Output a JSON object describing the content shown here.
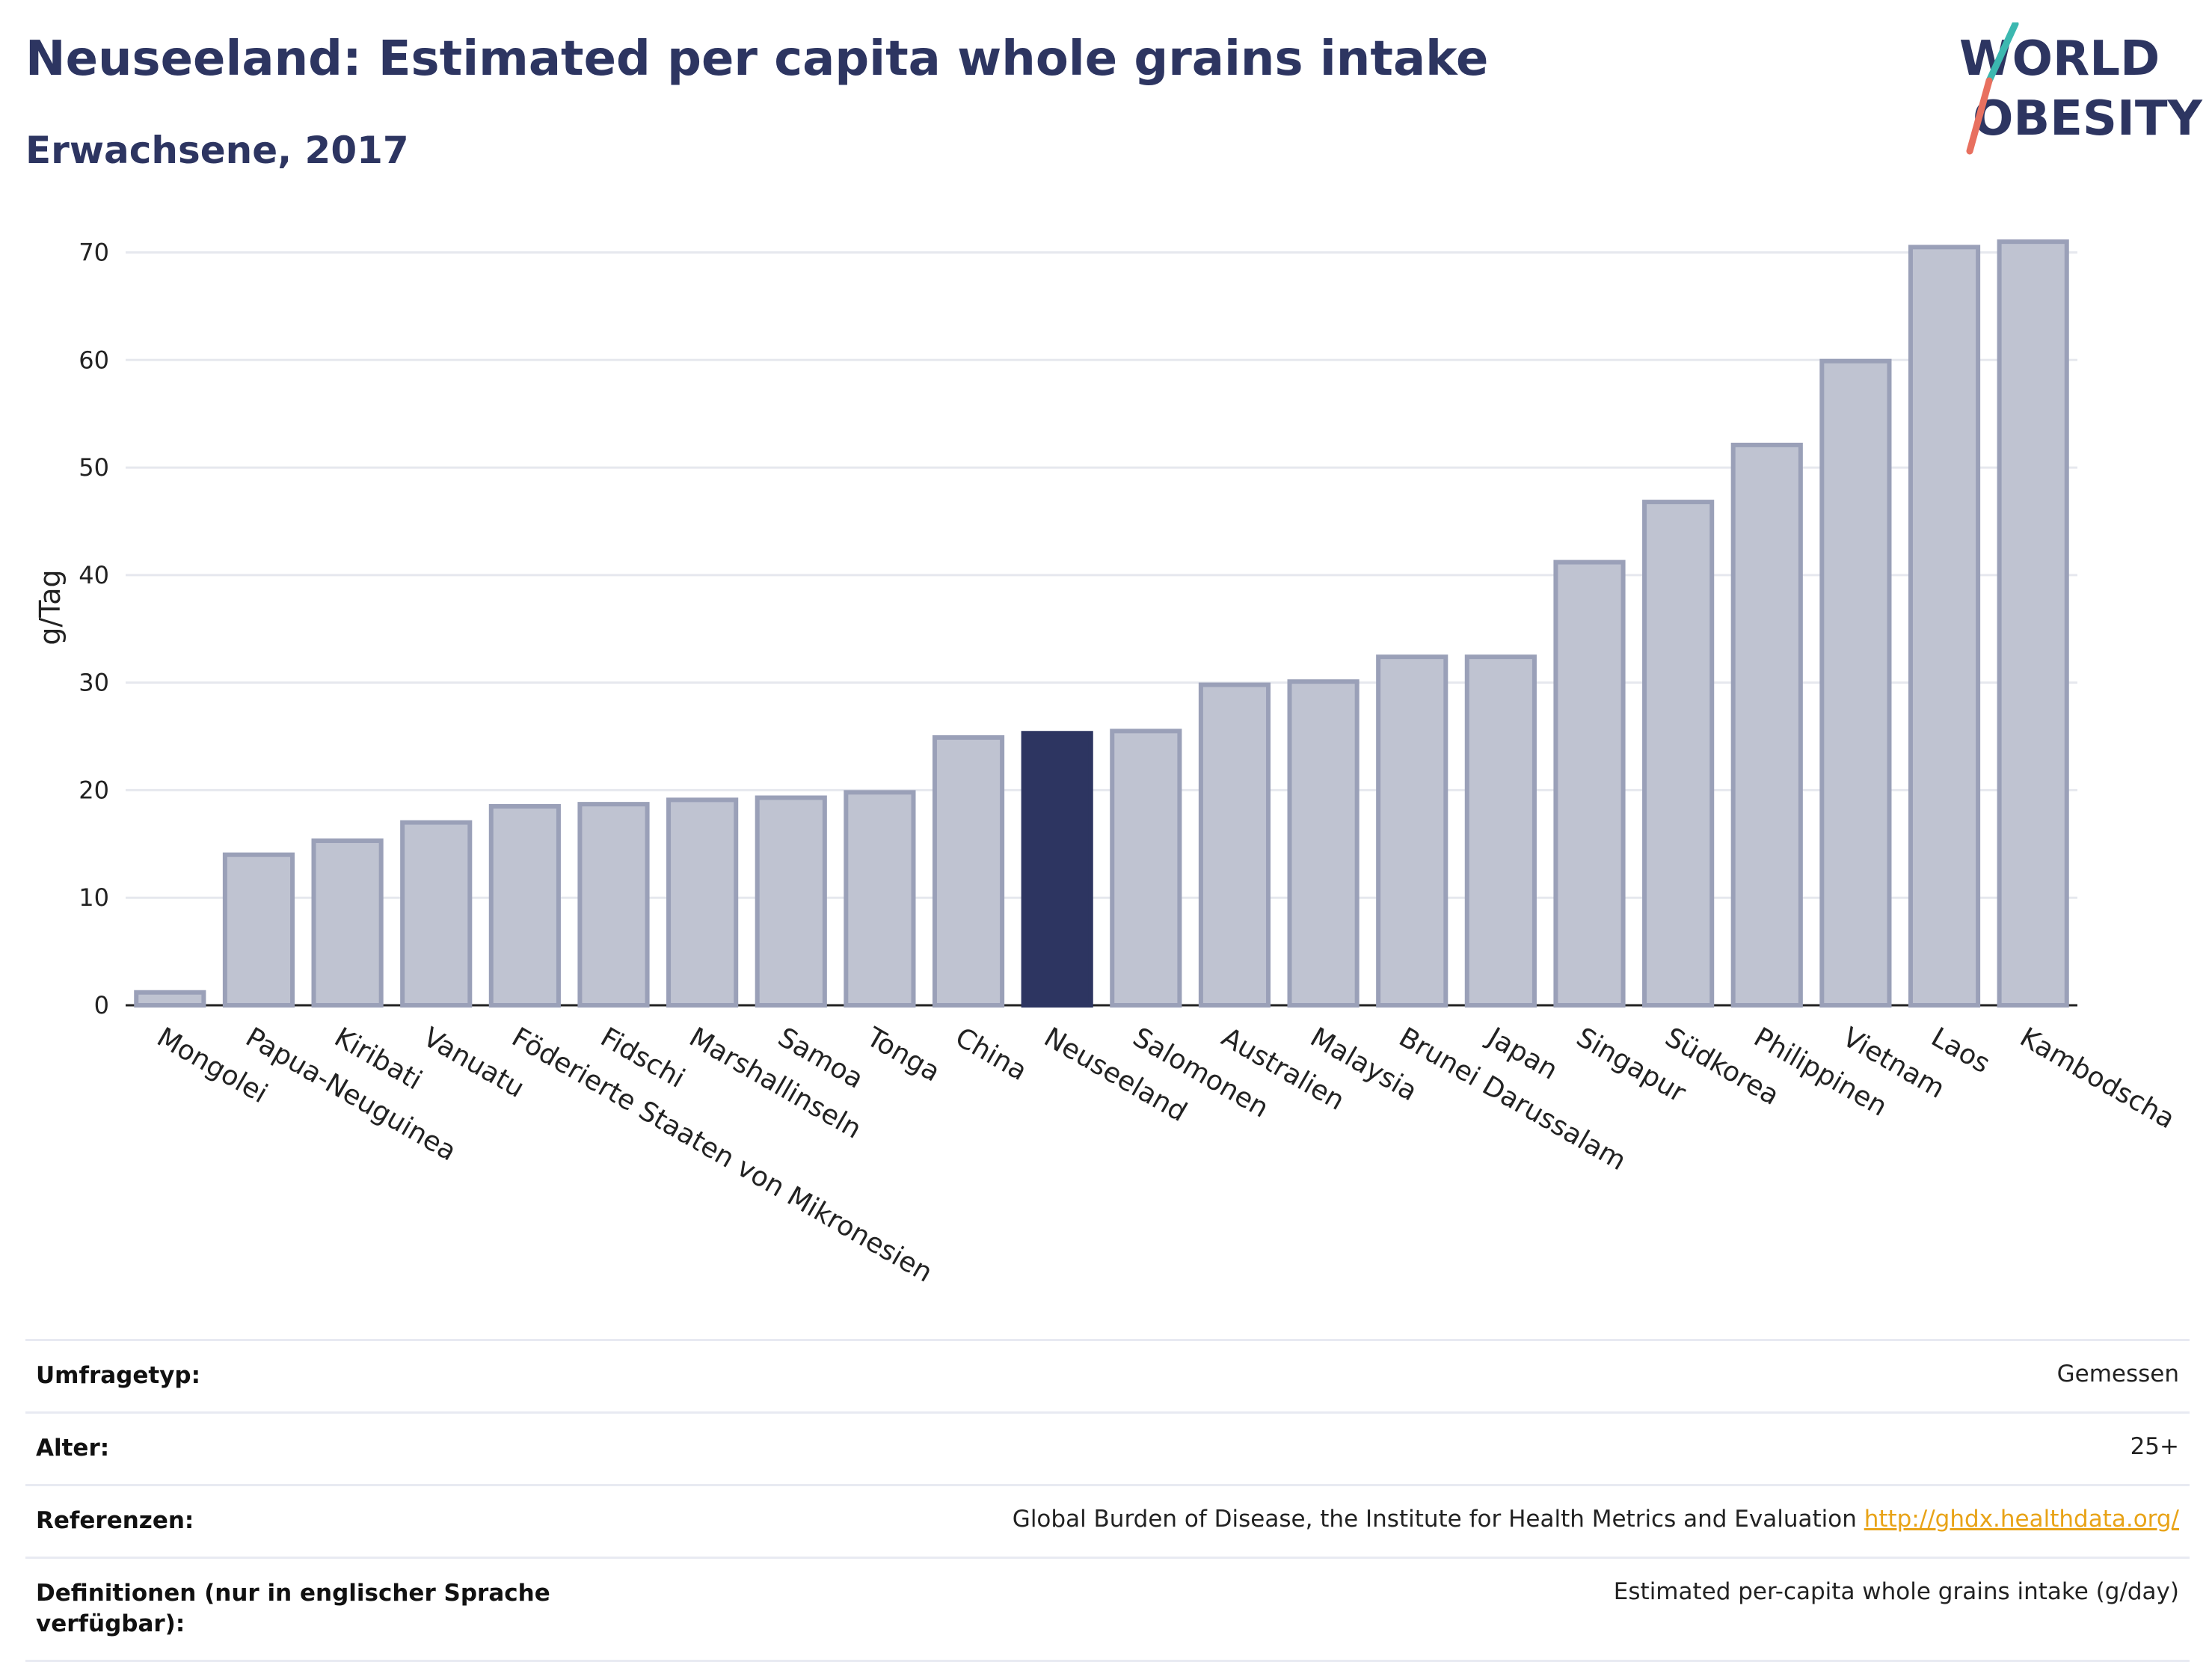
{
  "header": {
    "title": "Neuseeland: Estimated per capita whole grains intake",
    "subtitle": "Erwachsene, 2017"
  },
  "logo": {
    "line1": "WORLD",
    "line2": "OBESITY"
  },
  "colors": {
    "bar": "#bfc3d1",
    "bar_border": "#9aa0b8",
    "highlight": "#2d3561",
    "grid": "#e6e8ee"
  },
  "chart_data": {
    "type": "bar",
    "ylabel": "g/Tag",
    "ylim": [
      0,
      74
    ],
    "yticks": [
      0,
      10,
      20,
      30,
      40,
      50,
      60,
      70
    ],
    "highlight": "Neuseeland",
    "grid": true,
    "categories": [
      "Mongolei",
      "Papua-Neuguinea",
      "Kiribati",
      "Vanuatu",
      "Föderierte Staaten von Mikronesien",
      "Fidschi",
      "Marshallinseln",
      "Samoa",
      "Tonga",
      "China",
      "Neuseeland",
      "Salomonen",
      "Australien",
      "Malaysia",
      "Brunei Darussalam",
      "Japan",
      "Singapur",
      "Südkorea",
      "Philippinen",
      "Vietnam",
      "Laos",
      "Kambodscha"
    ],
    "values": [
      1.2,
      14.0,
      15.3,
      17.0,
      18.5,
      18.7,
      19.1,
      19.3,
      19.8,
      24.9,
      25.3,
      25.5,
      29.8,
      30.1,
      32.4,
      32.4,
      41.2,
      46.8,
      52.1,
      59.9,
      70.5,
      71.0
    ]
  },
  "meta": [
    {
      "label": "Umfragetyp:",
      "value": "Gemessen"
    },
    {
      "label": "Alter:",
      "value": "25+"
    },
    {
      "label": "Referenzen:",
      "value": "Global Burden of Disease, the Institute for Health Metrics and Evaluation",
      "link": "http://ghdx.healthdata.org/"
    },
    {
      "label": "Definitionen (nur in englischer Sprache verfügbar):",
      "value": "Estimated per-capita whole grains intake (g/day)"
    }
  ]
}
